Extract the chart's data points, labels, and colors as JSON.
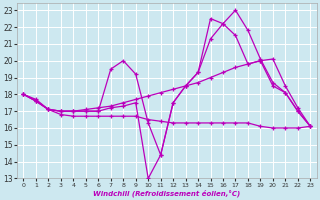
{
  "xlabel": "Windchill (Refroidissement éolien,°C)",
  "bg_color": "#cde8f0",
  "line_color": "#bb00bb",
  "grid_color": "#ffffff",
  "xlim": [
    -0.5,
    23.5
  ],
  "ylim": [
    13,
    23.4
  ],
  "yticks": [
    13,
    14,
    15,
    16,
    17,
    18,
    19,
    20,
    21,
    22,
    23
  ],
  "xticks": [
    0,
    1,
    2,
    3,
    4,
    5,
    6,
    7,
    8,
    9,
    10,
    11,
    12,
    13,
    14,
    15,
    16,
    17,
    18,
    19,
    20,
    21,
    22,
    23
  ],
  "series": [
    {
      "x": [
        0,
        1,
        2,
        3,
        4,
        5,
        6,
        7,
        8,
        9,
        10,
        11,
        12,
        13,
        14,
        15,
        16,
        17,
        18,
        19,
        20,
        21,
        22,
        23
      ],
      "y": [
        18,
        17.7,
        17.1,
        16.8,
        16.7,
        16.7,
        16.7,
        16.7,
        16.7,
        16.7,
        16.5,
        16.4,
        16.3,
        16.3,
        16.3,
        16.3,
        16.3,
        16.3,
        16.3,
        16.1,
        16.0,
        16.0,
        16.0,
        16.1
      ]
    },
    {
      "x": [
        0,
        1,
        2,
        3,
        4,
        5,
        6,
        7,
        8,
        9,
        10,
        11,
        12,
        13,
        14,
        15,
        16,
        17,
        18,
        19,
        20,
        21,
        22,
        23
      ],
      "y": [
        18,
        17.6,
        17.1,
        17.0,
        17.0,
        17.0,
        17.0,
        17.2,
        17.3,
        17.5,
        13.0,
        14.4,
        17.5,
        18.5,
        19.3,
        21.3,
        22.2,
        23.0,
        21.8,
        20.1,
        18.7,
        18.1,
        17.0,
        16.1
      ]
    },
    {
      "x": [
        0,
        1,
        2,
        3,
        4,
        5,
        6,
        7,
        8,
        9,
        10,
        11,
        12,
        13,
        14,
        15,
        16,
        17,
        18,
        19,
        20,
        21,
        22,
        23
      ],
      "y": [
        18,
        17.6,
        17.1,
        17.0,
        17.0,
        17.0,
        17.0,
        19.5,
        20.0,
        19.2,
        16.3,
        14.4,
        17.5,
        18.5,
        19.3,
        22.5,
        22.2,
        21.5,
        19.8,
        20.0,
        18.5,
        18.1,
        17.0,
        16.1
      ]
    },
    {
      "x": [
        0,
        1,
        2,
        3,
        4,
        5,
        6,
        7,
        8,
        9,
        10,
        11,
        12,
        13,
        14,
        15,
        16,
        17,
        18,
        19,
        20,
        21,
        22,
        23
      ],
      "y": [
        18,
        17.6,
        17.1,
        17.0,
        17.0,
        17.1,
        17.2,
        17.3,
        17.5,
        17.7,
        17.9,
        18.1,
        18.3,
        18.5,
        18.7,
        19.0,
        19.3,
        19.6,
        19.8,
        20.0,
        20.1,
        18.5,
        17.2,
        16.1
      ]
    }
  ]
}
